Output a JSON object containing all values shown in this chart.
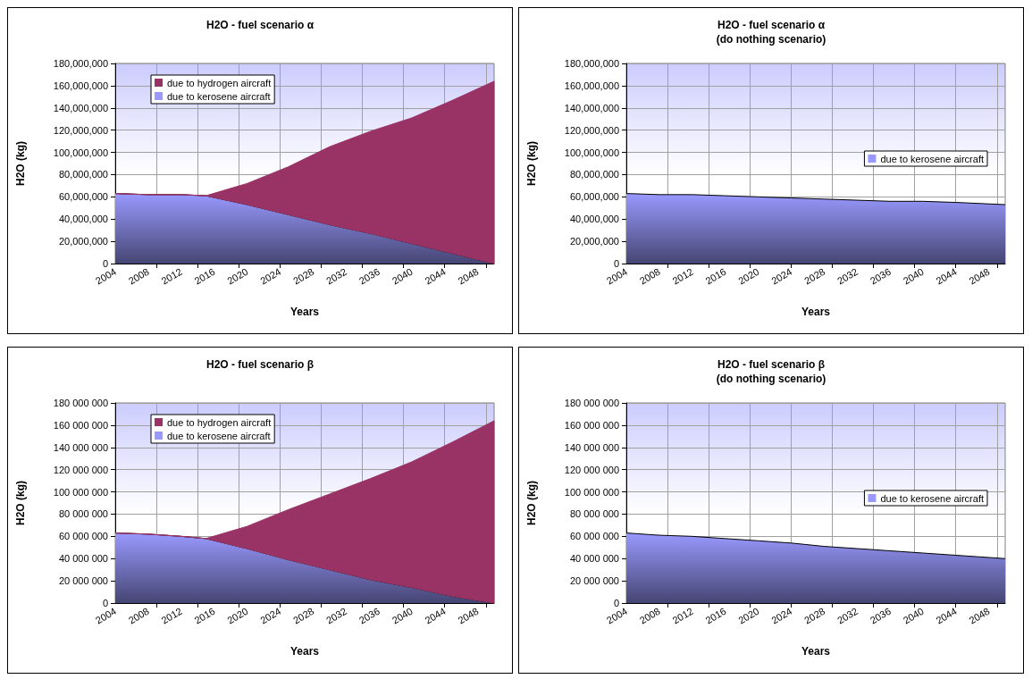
{
  "chart_data": [
    {
      "type": "area",
      "title": "H2O - fuel scenario α",
      "xlabel": "Years",
      "ylabel": "H2O (kg)",
      "stacked": true,
      "grid": true,
      "legend": "top left",
      "x": [
        2004,
        2008,
        2012,
        2015,
        2020,
        2025,
        2030,
        2035,
        2040,
        2045,
        2050
      ],
      "series": [
        {
          "name": "due to kerosene aircraft",
          "color": "#9999ff",
          "values": [
            63000000,
            62000000,
            62000000,
            61000000,
            53000000,
            44000000,
            35000000,
            27000000,
            18000000,
            9000000,
            0
          ]
        },
        {
          "name": "due to hydrogen aircraft",
          "color": "#993366",
          "values": [
            0,
            0,
            0,
            0,
            19000000,
            43000000,
            70000000,
            92000000,
            113000000,
            138000000,
            164000000
          ]
        }
      ],
      "xlim": [
        2004,
        2050
      ],
      "xticks": [
        2004,
        2008,
        2012,
        2016,
        2020,
        2024,
        2028,
        2032,
        2036,
        2040,
        2044,
        2048,
        {
          "value": 2009,
          "label": null
        },
        {
          "value": 2014,
          "label": null
        },
        {
          "value": 2019,
          "label": null
        },
        {
          "value": 2024,
          "label": null
        },
        {
          "value": 2029,
          "label": null
        },
        {
          "value": 2034,
          "label": null
        },
        {
          "value": 2039,
          "label": null
        },
        {
          "value": 2044,
          "label": null
        },
        {
          "value": 2049,
          "label": null
        }
      ],
      "ylim": [
        0,
        180000000
      ],
      "yticks": [
        {
          "value": 0,
          "label": "0"
        },
        {
          "value": 20000000,
          "label": "20,000,000"
        },
        {
          "value": 40000000,
          "label": "40,000,000"
        },
        {
          "value": 60000000,
          "label": "60,000,000"
        },
        {
          "value": 80000000,
          "label": "80,000,000"
        },
        {
          "value": 100000000,
          "label": "100,000,000"
        },
        {
          "value": 120000000,
          "label": "120,000,000"
        },
        {
          "value": 140000000,
          "label": "140,000,000"
        },
        {
          "value": 160000000,
          "label": "160,000,000"
        },
        {
          "value": 180000000,
          "label": "180,000,000"
        }
      ]
    },
    {
      "type": "area",
      "title": "H2O - fuel scenario α",
      "subtitle": "(do nothing scenario)",
      "xlabel": "Years",
      "ylabel": "H2O (kg)",
      "grid": true,
      "legend": "right",
      "x": [
        2004,
        2008,
        2012,
        2016,
        2020,
        2024,
        2028,
        2032,
        2036,
        2040,
        2044,
        2050
      ],
      "series": [
        {
          "name": "due to kerosene aircraft",
          "color": "#9999ff",
          "values": [
            63000000,
            62000000,
            62000000,
            61000000,
            60000000,
            59000000,
            58000000,
            57000000,
            56000000,
            56000000,
            55000000,
            53000000
          ]
        }
      ],
      "xlim": [
        2004,
        2050
      ],
      "xticks": [
        2004,
        2008,
        2012,
        2016,
        2020,
        2024,
        2028,
        2032,
        2036,
        2040,
        2044,
        2048,
        {
          "value": 2009,
          "label": null
        },
        {
          "value": 2014,
          "label": null
        },
        {
          "value": 2019,
          "label": null
        },
        {
          "value": 2024,
          "label": null
        },
        {
          "value": 2029,
          "label": null
        },
        {
          "value": 2034,
          "label": null
        },
        {
          "value": 2039,
          "label": null
        },
        {
          "value": 2044,
          "label": null
        },
        {
          "value": 2049,
          "label": null
        }
      ],
      "ylim": [
        0,
        180000000
      ],
      "yticks": [
        {
          "value": 0,
          "label": "0"
        },
        {
          "value": 20000000,
          "label": "20,000,000"
        },
        {
          "value": 40000000,
          "label": "40,000,000"
        },
        {
          "value": 60000000,
          "label": "60,000,000"
        },
        {
          "value": 80000000,
          "label": "80,000,000"
        },
        {
          "value": 100000000,
          "label": "100,000,000"
        },
        {
          "value": 120000000,
          "label": "120,000,000"
        },
        {
          "value": 140000000,
          "label": "140,000,000"
        },
        {
          "value": 160000000,
          "label": "160,000,000"
        },
        {
          "value": 180000000,
          "label": "180,000,000"
        }
      ]
    },
    {
      "type": "area",
      "title": "H2O - fuel scenario β",
      "xlabel": "Years",
      "ylabel": "H2O (kg)",
      "stacked": true,
      "grid": true,
      "legend": "top left",
      "x": [
        2004,
        2008,
        2012,
        2015,
        2020,
        2025,
        2030,
        2035,
        2040,
        2045,
        2050
      ],
      "series": [
        {
          "name": "due to kerosene aircraft",
          "color": "#9999ff",
          "values": [
            63000000,
            62000000,
            60000000,
            58000000,
            49000000,
            39000000,
            30000000,
            21000000,
            14000000,
            6000000,
            0
          ]
        },
        {
          "name": "due to hydrogen aircraft",
          "color": "#993366",
          "values": [
            0,
            0,
            0,
            0,
            20000000,
            45000000,
            68000000,
            91000000,
            113000000,
            139000000,
            164000000
          ]
        }
      ],
      "xlim": [
        2004,
        2050
      ],
      "xticks": [
        2004,
        2008,
        2012,
        2016,
        2020,
        2024,
        2028,
        2032,
        2036,
        2040,
        2044,
        2048,
        {
          "value": 2009,
          "label": null
        },
        {
          "value": 2014,
          "label": null
        },
        {
          "value": 2019,
          "label": null
        },
        {
          "value": 2024,
          "label": null
        },
        {
          "value": 2029,
          "label": null
        },
        {
          "value": 2034,
          "label": null
        },
        {
          "value": 2039,
          "label": null
        },
        {
          "value": 2044,
          "label": null
        },
        {
          "value": 2049,
          "label": null
        }
      ],
      "ylim": [
        0,
        180000000
      ],
      "yticks": [
        {
          "value": 0,
          "label": "0"
        },
        {
          "value": 20000000,
          "label": "20 000 000"
        },
        {
          "value": 40000000,
          "label": "40 000 000"
        },
        {
          "value": 60000000,
          "label": "60 000 000"
        },
        {
          "value": 80000000,
          "label": "80 000 000"
        },
        {
          "value": 100000000,
          "label": "100 000 000"
        },
        {
          "value": 120000000,
          "label": "120 000 000"
        },
        {
          "value": 140000000,
          "label": "140 000 000"
        },
        {
          "value": 160000000,
          "label": "160 000 000"
        },
        {
          "value": 180000000,
          "label": "180 000 000"
        }
      ]
    },
    {
      "type": "area",
      "title": "H2O - fuel scenario β",
      "subtitle": "(do nothing scenario)",
      "xlabel": "Years",
      "ylabel": "H2O (kg)",
      "grid": true,
      "legend": "right",
      "x": [
        2004,
        2008,
        2012,
        2016,
        2020,
        2024,
        2028,
        2032,
        2036,
        2040,
        2044,
        2050
      ],
      "series": [
        {
          "name": "due to kerosene aircraft",
          "color": "#9999ff",
          "values": [
            63000000,
            61000000,
            60000000,
            58000000,
            56000000,
            54000000,
            51000000,
            49000000,
            47000000,
            45000000,
            43000000,
            40000000
          ]
        }
      ],
      "xlim": [
        2004,
        2050
      ],
      "xticks": [
        2004,
        2008,
        2012,
        2016,
        2020,
        2024,
        2028,
        2032,
        2036,
        2040,
        2044,
        2048,
        {
          "value": 2009,
          "label": null
        },
        {
          "value": 2014,
          "label": null
        },
        {
          "value": 2019,
          "label": null
        },
        {
          "value": 2024,
          "label": null
        },
        {
          "value": 2029,
          "label": null
        },
        {
          "value": 2034,
          "label": null
        },
        {
          "value": 2039,
          "label": null
        },
        {
          "value": 2044,
          "label": null
        },
        {
          "value": 2049,
          "label": null
        }
      ],
      "ylim": [
        0,
        180000000
      ],
      "yticks": [
        {
          "value": 0,
          "label": "0"
        },
        {
          "value": 20000000,
          "label": "20 000 000"
        },
        {
          "value": 40000000,
          "label": "40 000 000"
        },
        {
          "value": 60000000,
          "label": "60 000 000"
        },
        {
          "value": 80000000,
          "label": "80 000 000"
        },
        {
          "value": 100000000,
          "label": "100 000 000"
        },
        {
          "value": 120000000,
          "label": "120 000 000"
        },
        {
          "value": 140000000,
          "label": "140 000 000"
        },
        {
          "value": 160000000,
          "label": "160 000 000"
        },
        {
          "value": 180000000,
          "label": "180 000 000"
        }
      ]
    }
  ]
}
